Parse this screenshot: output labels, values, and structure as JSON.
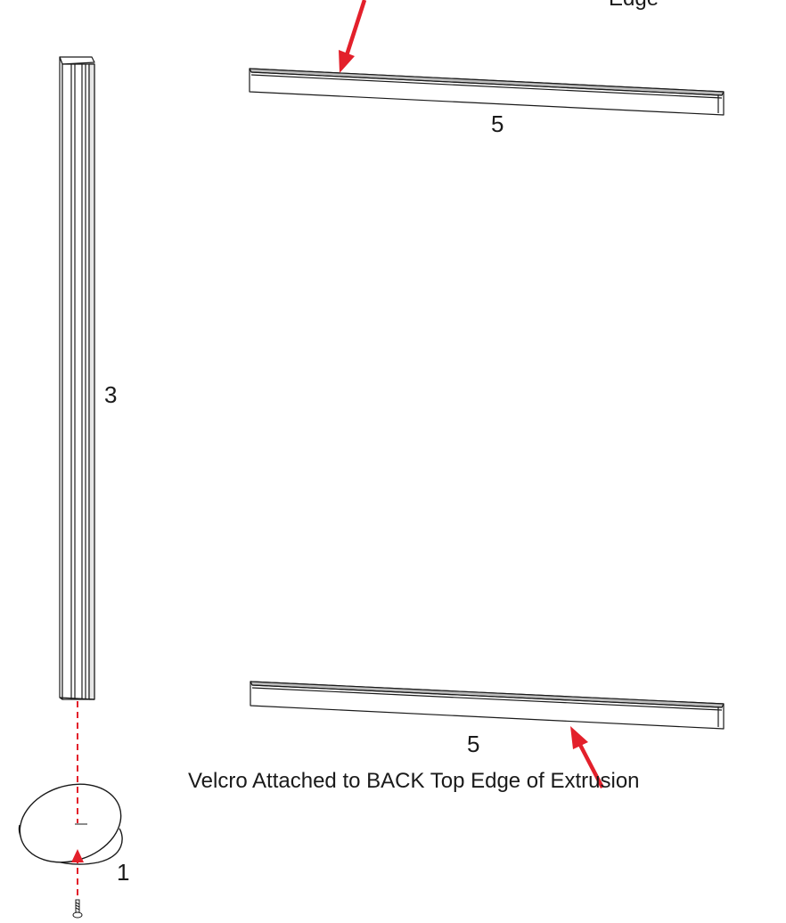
{
  "parts": {
    "post": {
      "label": "3"
    },
    "rail_top": {
      "label": "5"
    },
    "rail_bottom": {
      "label": "5"
    },
    "base": {
      "label": "1"
    }
  },
  "notes": {
    "top_partial": "Edge",
    "bottom": "Velcro Attached to BACK Top Edge of Extrusion"
  },
  "colors": {
    "line": "#1a1a1a",
    "arrow": "#e3202b",
    "background": "#ffffff"
  }
}
